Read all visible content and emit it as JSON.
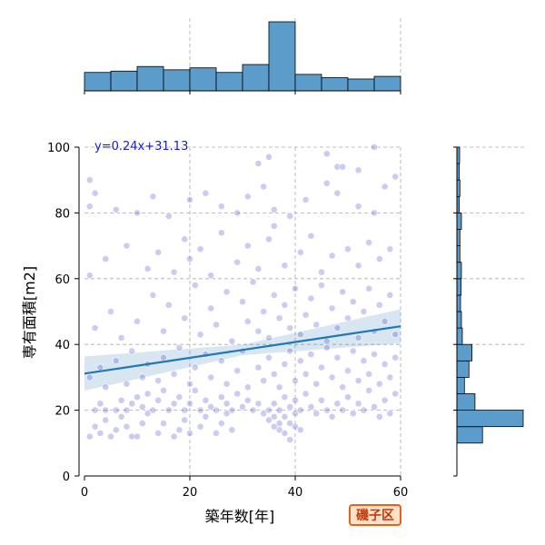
{
  "chart_data": {
    "type": "scatter",
    "title": "",
    "xlabel": "築年数[年]",
    "ylabel": "専有面積[m2]",
    "xlim": [
      0,
      60
    ],
    "ylim": [
      0,
      100
    ],
    "x_ticks": [
      0,
      20,
      40,
      60
    ],
    "y_ticks": [
      0,
      20,
      40,
      60,
      80,
      100
    ],
    "grid": true,
    "regression": {
      "label": "y=0.24x+31.13",
      "slope": 0.24,
      "intercept": 31.13,
      "color": "#1f77b4",
      "band_color": "#1f77b4"
    },
    "point_color": "#3333cc",
    "x_marginal_hist": {
      "bin_edges": [
        0,
        5,
        10,
        15,
        20,
        25,
        30,
        35,
        40,
        45,
        50,
        55,
        60
      ],
      "counts": [
        28,
        30,
        37,
        32,
        35,
        28,
        40,
        105,
        25,
        20,
        18,
        22
      ]
    },
    "y_marginal_hist": {
      "bin_edges": [
        10,
        15,
        20,
        25,
        30,
        35,
        40,
        45,
        50,
        55,
        60,
        65,
        70,
        75,
        80,
        85,
        90,
        95,
        100
      ],
      "counts": [
        85,
        220,
        60,
        25,
        40,
        50,
        18,
        15,
        12,
        14,
        15,
        10,
        10,
        15,
        8,
        10,
        8,
        9
      ]
    },
    "points": [
      {
        "x": 1,
        "y": 12
      },
      {
        "x": 2,
        "y": 15
      },
      {
        "x": 3,
        "y": 13
      },
      {
        "x": 4,
        "y": 17
      },
      {
        "x": 5,
        "y": 12
      },
      {
        "x": 6,
        "y": 14
      },
      {
        "x": 7,
        "y": 18
      },
      {
        "x": 8,
        "y": 15
      },
      {
        "x": 9,
        "y": 12
      },
      {
        "x": 10,
        "y": 12
      },
      {
        "x": 11,
        "y": 16
      },
      {
        "x": 12,
        "y": 19
      },
      {
        "x": 14,
        "y": 13
      },
      {
        "x": 15,
        "y": 16
      },
      {
        "x": 17,
        "y": 12
      },
      {
        "x": 18,
        "y": 14
      },
      {
        "x": 19,
        "y": 17
      },
      {
        "x": 20,
        "y": 13
      },
      {
        "x": 22,
        "y": 15
      },
      {
        "x": 23,
        "y": 18
      },
      {
        "x": 25,
        "y": 13
      },
      {
        "x": 26,
        "y": 16
      },
      {
        "x": 27,
        "y": 19
      },
      {
        "x": 28,
        "y": 14
      },
      {
        "x": 2,
        "y": 20
      },
      {
        "x": 3,
        "y": 22
      },
      {
        "x": 4,
        "y": 20
      },
      {
        "x": 6,
        "y": 20
      },
      {
        "x": 7,
        "y": 23
      },
      {
        "x": 8,
        "y": 20
      },
      {
        "x": 9,
        "y": 22
      },
      {
        "x": 10,
        "y": 24
      },
      {
        "x": 11,
        "y": 21
      },
      {
        "x": 12,
        "y": 25
      },
      {
        "x": 13,
        "y": 20
      },
      {
        "x": 14,
        "y": 23
      },
      {
        "x": 15,
        "y": 26
      },
      {
        "x": 16,
        "y": 20
      },
      {
        "x": 17,
        "y": 22
      },
      {
        "x": 18,
        "y": 24
      },
      {
        "x": 19,
        "y": 20
      },
      {
        "x": 20,
        "y": 22
      },
      {
        "x": 21,
        "y": 26
      },
      {
        "x": 22,
        "y": 20
      },
      {
        "x": 23,
        "y": 23
      },
      {
        "x": 24,
        "y": 21
      },
      {
        "x": 25,
        "y": 20
      },
      {
        "x": 26,
        "y": 24
      },
      {
        "x": 27,
        "y": 22
      },
      {
        "x": 28,
        "y": 20
      },
      {
        "x": 29,
        "y": 25
      },
      {
        "x": 30,
        "y": 21
      },
      {
        "x": 31,
        "y": 23
      },
      {
        "x": 32,
        "y": 20
      },
      {
        "x": 33,
        "y": 22
      },
      {
        "x": 34,
        "y": 19
      },
      {
        "x": 35,
        "y": 17
      },
      {
        "x": 36,
        "y": 18
      },
      {
        "x": 36,
        "y": 15
      },
      {
        "x": 37,
        "y": 16
      },
      {
        "x": 37,
        "y": 14
      },
      {
        "x": 38,
        "y": 18
      },
      {
        "x": 38,
        "y": 13
      },
      {
        "x": 39,
        "y": 16
      },
      {
        "x": 39,
        "y": 11
      },
      {
        "x": 40,
        "y": 15
      },
      {
        "x": 40,
        "y": 19
      },
      {
        "x": 41,
        "y": 14
      },
      {
        "x": 35,
        "y": 20
      },
      {
        "x": 36,
        "y": 22
      },
      {
        "x": 37,
        "y": 20
      },
      {
        "x": 38,
        "y": 24
      },
      {
        "x": 39,
        "y": 21
      },
      {
        "x": 40,
        "y": 23
      },
      {
        "x": 41,
        "y": 20
      },
      {
        "x": 42,
        "y": 25
      },
      {
        "x": 43,
        "y": 21
      },
      {
        "x": 44,
        "y": 19
      },
      {
        "x": 45,
        "y": 23
      },
      {
        "x": 46,
        "y": 20
      },
      {
        "x": 47,
        "y": 18
      },
      {
        "x": 48,
        "y": 22
      },
      {
        "x": 49,
        "y": 20
      },
      {
        "x": 50,
        "y": 24
      },
      {
        "x": 51,
        "y": 19
      },
      {
        "x": 52,
        "y": 22
      },
      {
        "x": 53,
        "y": 20
      },
      {
        "x": 54,
        "y": 26
      },
      {
        "x": 55,
        "y": 21
      },
      {
        "x": 56,
        "y": 18
      },
      {
        "x": 57,
        "y": 23
      },
      {
        "x": 58,
        "y": 19
      },
      {
        "x": 59,
        "y": 25
      },
      {
        "x": 1,
        "y": 30
      },
      {
        "x": 3,
        "y": 33
      },
      {
        "x": 4,
        "y": 27
      },
      {
        "x": 6,
        "y": 35
      },
      {
        "x": 8,
        "y": 28
      },
      {
        "x": 9,
        "y": 38
      },
      {
        "x": 11,
        "y": 30
      },
      {
        "x": 12,
        "y": 34
      },
      {
        "x": 14,
        "y": 29
      },
      {
        "x": 15,
        "y": 36
      },
      {
        "x": 17,
        "y": 31
      },
      {
        "x": 18,
        "y": 39
      },
      {
        "x": 20,
        "y": 28
      },
      {
        "x": 21,
        "y": 33
      },
      {
        "x": 23,
        "y": 37
      },
      {
        "x": 24,
        "y": 30
      },
      {
        "x": 26,
        "y": 35
      },
      {
        "x": 27,
        "y": 28
      },
      {
        "x": 29,
        "y": 32
      },
      {
        "x": 30,
        "y": 38
      },
      {
        "x": 31,
        "y": 27
      },
      {
        "x": 33,
        "y": 33
      },
      {
        "x": 34,
        "y": 29
      },
      {
        "x": 35,
        "y": 36
      },
      {
        "x": 36,
        "y": 31
      },
      {
        "x": 37,
        "y": 27
      },
      {
        "x": 38,
        "y": 34
      },
      {
        "x": 39,
        "y": 38
      },
      {
        "x": 40,
        "y": 29
      },
      {
        "x": 41,
        "y": 35
      },
      {
        "x": 42,
        "y": 31
      },
      {
        "x": 43,
        "y": 37
      },
      {
        "x": 44,
        "y": 28
      },
      {
        "x": 45,
        "y": 33
      },
      {
        "x": 46,
        "y": 39
      },
      {
        "x": 47,
        "y": 30
      },
      {
        "x": 48,
        "y": 36
      },
      {
        "x": 49,
        "y": 27
      },
      {
        "x": 50,
        "y": 32
      },
      {
        "x": 51,
        "y": 38
      },
      {
        "x": 52,
        "y": 29
      },
      {
        "x": 53,
        "y": 35
      },
      {
        "x": 54,
        "y": 31
      },
      {
        "x": 55,
        "y": 37
      },
      {
        "x": 56,
        "y": 28
      },
      {
        "x": 57,
        "y": 34
      },
      {
        "x": 58,
        "y": 30
      },
      {
        "x": 59,
        "y": 36
      },
      {
        "x": 2,
        "y": 45
      },
      {
        "x": 5,
        "y": 50
      },
      {
        "x": 7,
        "y": 42
      },
      {
        "x": 10,
        "y": 47
      },
      {
        "x": 13,
        "y": 55
      },
      {
        "x": 15,
        "y": 44
      },
      {
        "x": 16,
        "y": 52
      },
      {
        "x": 19,
        "y": 48
      },
      {
        "x": 21,
        "y": 58
      },
      {
        "x": 22,
        "y": 43
      },
      {
        "x": 24,
        "y": 51
      },
      {
        "x": 25,
        "y": 46
      },
      {
        "x": 27,
        "y": 56
      },
      {
        "x": 28,
        "y": 41
      },
      {
        "x": 30,
        "y": 53
      },
      {
        "x": 31,
        "y": 47
      },
      {
        "x": 32,
        "y": 59
      },
      {
        "x": 33,
        "y": 44
      },
      {
        "x": 34,
        "y": 50
      },
      {
        "x": 35,
        "y": 42
      },
      {
        "x": 36,
        "y": 55
      },
      {
        "x": 37,
        "y": 48
      },
      {
        "x": 38,
        "y": 52
      },
      {
        "x": 39,
        "y": 45
      },
      {
        "x": 40,
        "y": 57
      },
      {
        "x": 41,
        "y": 43
      },
      {
        "x": 42,
        "y": 49
      },
      {
        "x": 43,
        "y": 54
      },
      {
        "x": 44,
        "y": 46
      },
      {
        "x": 45,
        "y": 58
      },
      {
        "x": 46,
        "y": 41
      },
      {
        "x": 47,
        "y": 51
      },
      {
        "x": 48,
        "y": 45
      },
      {
        "x": 49,
        "y": 56
      },
      {
        "x": 50,
        "y": 48
      },
      {
        "x": 51,
        "y": 53
      },
      {
        "x": 52,
        "y": 42
      },
      {
        "x": 53,
        "y": 50
      },
      {
        "x": 54,
        "y": 57
      },
      {
        "x": 55,
        "y": 44
      },
      {
        "x": 56,
        "y": 52
      },
      {
        "x": 57,
        "y": 47
      },
      {
        "x": 58,
        "y": 55
      },
      {
        "x": 59,
        "y": 43
      },
      {
        "x": 1,
        "y": 61
      },
      {
        "x": 4,
        "y": 66
      },
      {
        "x": 8,
        "y": 70
      },
      {
        "x": 12,
        "y": 63
      },
      {
        "x": 14,
        "y": 68
      },
      {
        "x": 17,
        "y": 62
      },
      {
        "x": 19,
        "y": 72
      },
      {
        "x": 20,
        "y": 66
      },
      {
        "x": 22,
        "y": 69
      },
      {
        "x": 24,
        "y": 61
      },
      {
        "x": 26,
        "y": 74
      },
      {
        "x": 29,
        "y": 65
      },
      {
        "x": 31,
        "y": 70
      },
      {
        "x": 33,
        "y": 63
      },
      {
        "x": 35,
        "y": 72
      },
      {
        "x": 36,
        "y": 76
      },
      {
        "x": 38,
        "y": 64
      },
      {
        "x": 41,
        "y": 68
      },
      {
        "x": 43,
        "y": 73
      },
      {
        "x": 45,
        "y": 62
      },
      {
        "x": 47,
        "y": 67
      },
      {
        "x": 50,
        "y": 69
      },
      {
        "x": 52,
        "y": 64
      },
      {
        "x": 54,
        "y": 71
      },
      {
        "x": 56,
        "y": 66
      },
      {
        "x": 58,
        "y": 69
      },
      {
        "x": 1,
        "y": 82
      },
      {
        "x": 2,
        "y": 86
      },
      {
        "x": 6,
        "y": 81
      },
      {
        "x": 10,
        "y": 80
      },
      {
        "x": 13,
        "y": 85
      },
      {
        "x": 16,
        "y": 79
      },
      {
        "x": 20,
        "y": 84
      },
      {
        "x": 23,
        "y": 86
      },
      {
        "x": 26,
        "y": 82
      },
      {
        "x": 29,
        "y": 80
      },
      {
        "x": 31,
        "y": 85
      },
      {
        "x": 34,
        "y": 88
      },
      {
        "x": 36,
        "y": 81
      },
      {
        "x": 39,
        "y": 79
      },
      {
        "x": 42,
        "y": 84
      },
      {
        "x": 46,
        "y": 89
      },
      {
        "x": 48,
        "y": 86
      },
      {
        "x": 52,
        "y": 82
      },
      {
        "x": 55,
        "y": 80
      },
      {
        "x": 57,
        "y": 88
      },
      {
        "x": 1,
        "y": 90
      },
      {
        "x": 33,
        "y": 95
      },
      {
        "x": 35,
        "y": 97
      },
      {
        "x": 46,
        "y": 98
      },
      {
        "x": 48,
        "y": 94
      },
      {
        "x": 49,
        "y": 94
      },
      {
        "x": 52,
        "y": 93
      },
      {
        "x": 55,
        "y": 100
      },
      {
        "x": 59,
        "y": 91
      }
    ]
  },
  "badge": {
    "label": "磯子区",
    "border_color": "#e8601c",
    "fill_color": "#fde2c8",
    "text_color": "#c0390b"
  }
}
